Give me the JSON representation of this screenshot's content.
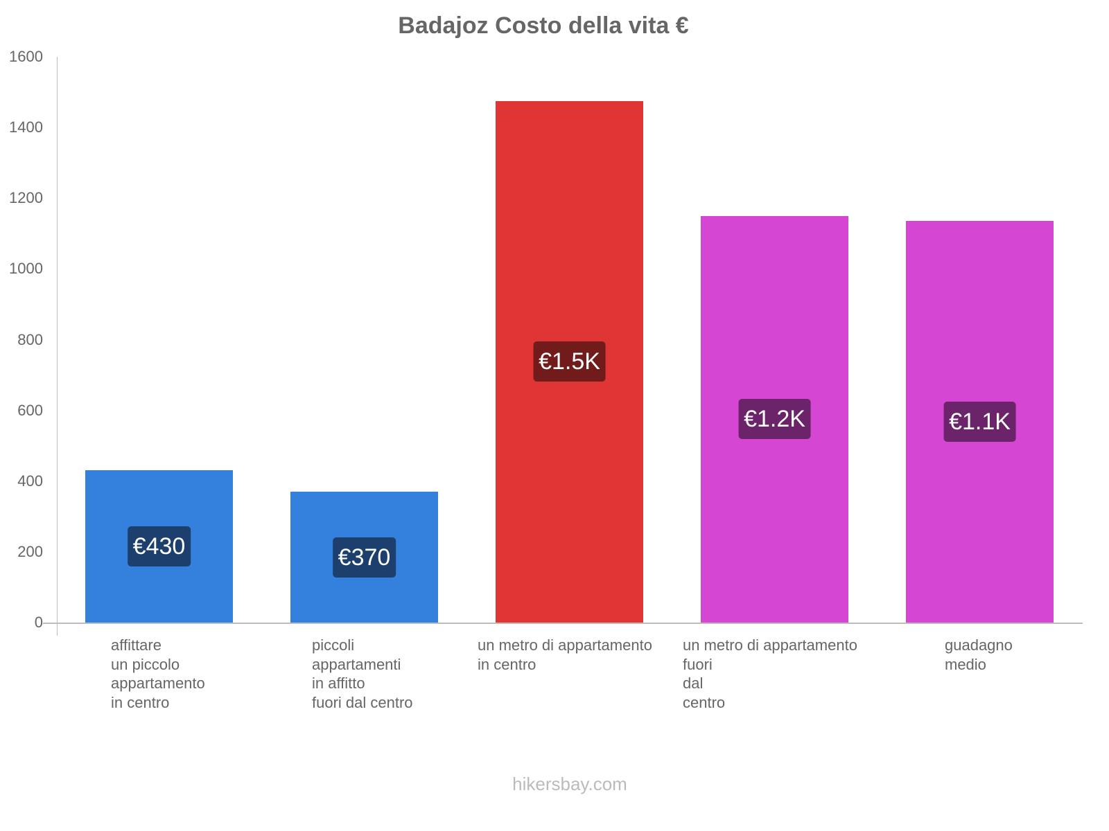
{
  "title": "Badajoz Costo della vita €",
  "footer": "hikersbay.com",
  "yaxis": {
    "ticks": [
      "0",
      "200",
      "400",
      "600",
      "800",
      "1000",
      "1200",
      "1400",
      "1600"
    ]
  },
  "bars": [
    {
      "label_lines": [
        "affittare",
        "un piccolo",
        "appartamento",
        "in centro"
      ],
      "value_label": "€430",
      "color": "#3481dd",
      "badge_color": "#1c3f6e"
    },
    {
      "label_lines": [
        "piccoli",
        "appartamenti",
        "in affitto",
        "fuori dal centro"
      ],
      "value_label": "€370",
      "color": "#3481dd",
      "badge_color": "#1c3f6e"
    },
    {
      "label_lines": [
        "un metro di appartamento",
        "in centro"
      ],
      "value_label": "€1.5K",
      "color": "#e03535",
      "badge_color": "#711b1b"
    },
    {
      "label_lines": [
        "un metro di appartamento",
        "fuori",
        "dal",
        "centro"
      ],
      "value_label": "€1.2K",
      "color": "#d547d2",
      "badge_color": "#6b2369"
    },
    {
      "label_lines": [
        "guadagno",
        "medio"
      ],
      "value_label": "€1.1K",
      "color": "#d547d2",
      "badge_color": "#6b2369"
    }
  ],
  "chart_data": {
    "type": "bar",
    "title": "Badajoz Costo della vita €",
    "categories": [
      "affittare un piccolo appartamento in centro",
      "piccoli appartamenti in affitto fuori dal centro",
      "un metro di appartamento in centro",
      "un metro di appartamento fuori dal centro",
      "guadagno medio"
    ],
    "values": [
      430,
      370,
      1475,
      1150,
      1135
    ],
    "data_labels": [
      "€430",
      "€370",
      "€1.5K",
      "€1.2K",
      "€1.1K"
    ],
    "colors": [
      "#3481dd",
      "#3481dd",
      "#e03535",
      "#d547d2",
      "#d547d2"
    ],
    "xlabel": "",
    "ylabel": "",
    "ylim": [
      0,
      1600
    ],
    "yticks": [
      0,
      200,
      400,
      600,
      800,
      1000,
      1200,
      1400,
      1600
    ],
    "grid": false,
    "legend": "none"
  }
}
